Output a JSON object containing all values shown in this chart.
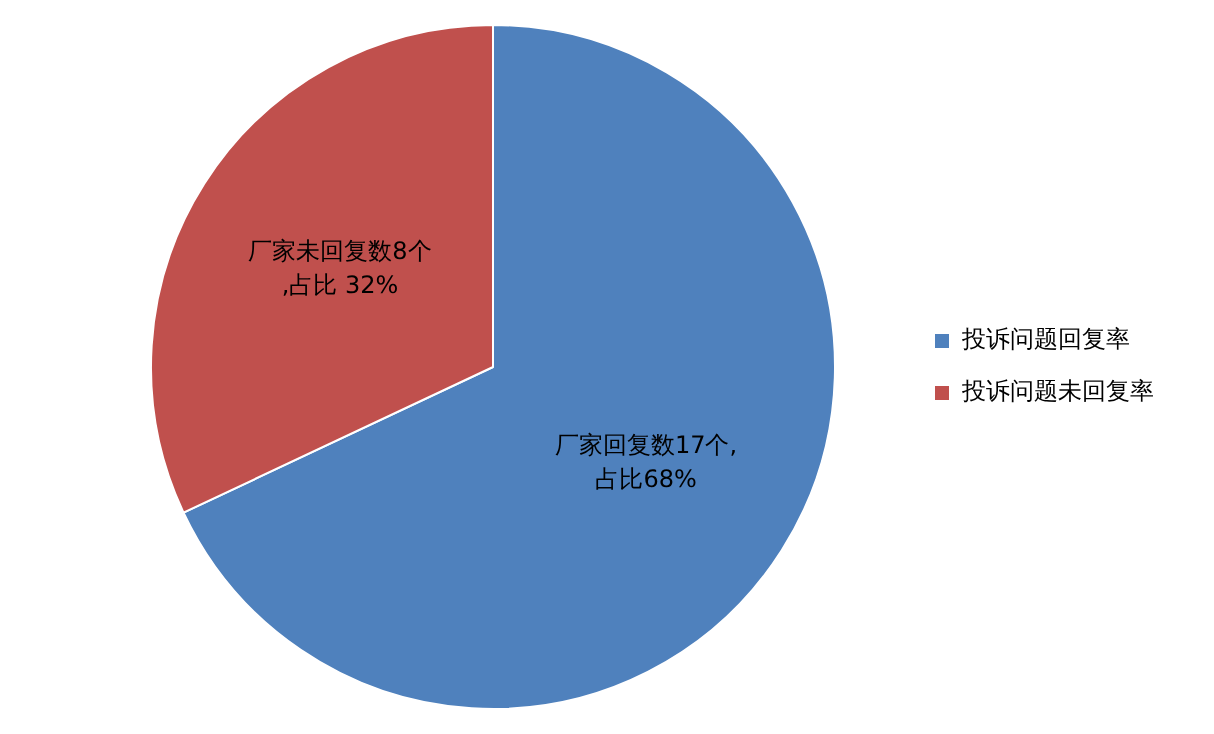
{
  "chart_data": {
    "type": "pie",
    "categories": [
      "投诉问题回复率",
      "投诉问题未回复率"
    ],
    "values": [
      17,
      8
    ],
    "colors": [
      "#4f81bd",
      "#c0504d"
    ],
    "value_labels": [
      "厂家回复数17个,\n占比68%",
      "厂家未回复数8个\n,占比 32%"
    ],
    "legend": "right"
  }
}
